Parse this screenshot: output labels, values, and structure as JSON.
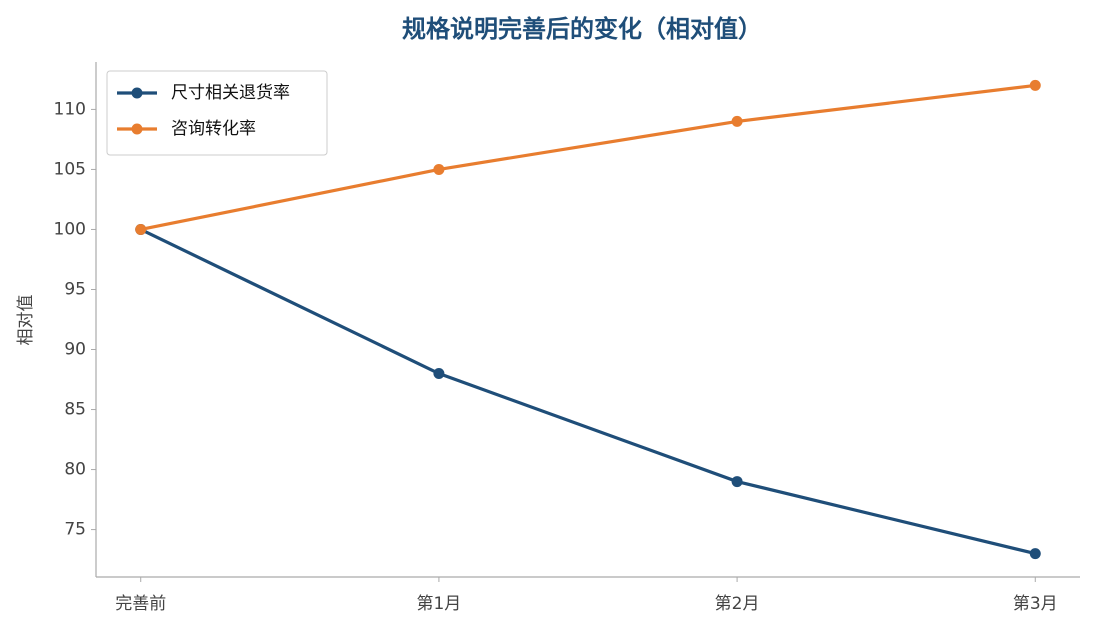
{
  "chart_data": {
    "type": "line",
    "title": "规格说明完善后的变化（相对值）",
    "y_label": "相对值",
    "categories": [
      "完善前",
      "第1月",
      "第2月",
      "第3月"
    ],
    "series": [
      {
        "name": "尺寸相关退货率",
        "color": "#1f4e79",
        "values": [
          100,
          88,
          79,
          73
        ]
      },
      {
        "name": "咨询转化率",
        "color": "#e87d2f",
        "values": [
          100,
          105,
          109,
          112
        ]
      }
    ],
    "ylim": [
      71.05,
      113.95
    ],
    "yticks": [
      75,
      80,
      85,
      90,
      95,
      100,
      105,
      110
    ],
    "legend": "upper left",
    "grid": false
  }
}
